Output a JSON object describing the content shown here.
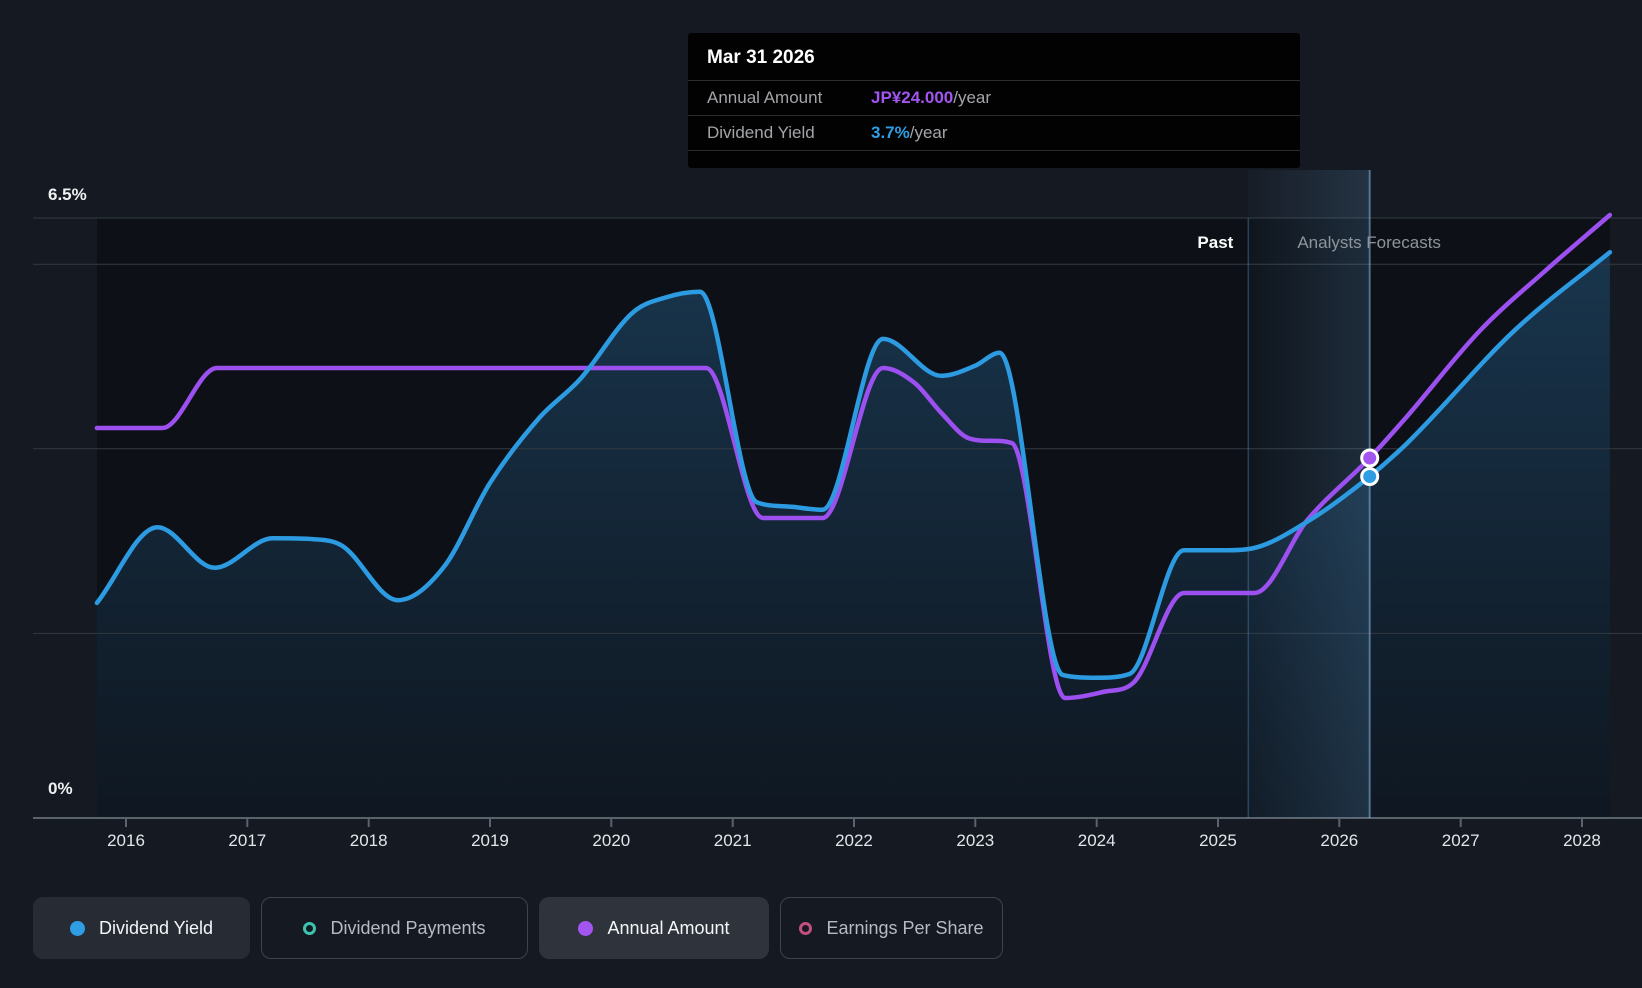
{
  "tooltip": {
    "date": "Mar 31 2026",
    "rows": [
      {
        "label": "Annual Amount",
        "value": "JP¥24.000",
        "suffix": "/year",
        "color": "#a355f2"
      },
      {
        "label": "Dividend Yield",
        "value": "3.7%",
        "suffix": "/year",
        "color": "#2f9ee8"
      }
    ]
  },
  "axis": {
    "y_top_label": "6.5%",
    "y_bottom_label": "0%"
  },
  "annotations": {
    "past": "Past",
    "forecast": "Analysts Forecasts"
  },
  "legend": {
    "items": [
      {
        "label": "Dividend Yield",
        "marker": "filled",
        "color": "#2f9de4",
        "active": true
      },
      {
        "label": "Dividend Payments",
        "marker": "ring",
        "color": "#3ec3b0",
        "active": false
      },
      {
        "label": "Annual Amount",
        "marker": "filled",
        "color": "#a355f2",
        "active": true
      },
      {
        "label": "Earnings Per Share",
        "marker": "ring",
        "color": "#c14f82",
        "active": false
      }
    ]
  },
  "chart_data": {
    "type": "line",
    "title": "Dividend yield history and analysts forecasts",
    "x_axis": {
      "ticks": [
        2016,
        2017,
        2018,
        2019,
        2020,
        2021,
        2022,
        2023,
        2024,
        2025,
        2026,
        2027,
        2028
      ],
      "range": [
        2015.76,
        2028.23
      ]
    },
    "y_axis": {
      "label": "Dividend Yield",
      "unit": "%",
      "range": [
        0,
        6.5
      ],
      "top_tick": 6.5,
      "bottom_tick": 0,
      "gridlines_pct": [
        6.5,
        6,
        4,
        2,
        0
      ]
    },
    "forecast_divider_x": 2025.25,
    "hover_x": 2026.25,
    "grid": true,
    "series": [
      {
        "name": "Dividend Yield",
        "unit": "%",
        "color": "#2d9be2",
        "style": "area-line",
        "points": [
          [
            2015.76,
            2.33
          ],
          [
            2016.26,
            3.15
          ],
          [
            2016.73,
            2.71
          ],
          [
            2017.21,
            3.03
          ],
          [
            2017.55,
            3.02
          ],
          [
            2017.78,
            2.95
          ],
          [
            2018.24,
            2.36
          ],
          [
            2018.62,
            2.72
          ],
          [
            2019.0,
            3.63
          ],
          [
            2019.41,
            4.34
          ],
          [
            2019.74,
            4.75
          ],
          [
            2020.18,
            5.48
          ],
          [
            2020.45,
            5.64
          ],
          [
            2020.73,
            5.7
          ],
          [
            2021.2,
            3.42
          ],
          [
            2021.5,
            3.37
          ],
          [
            2021.74,
            3.34
          ],
          [
            2022.24,
            5.19
          ],
          [
            2022.72,
            4.79
          ],
          [
            2023.0,
            4.9
          ],
          [
            2023.2,
            5.04
          ],
          [
            2023.72,
            1.55
          ],
          [
            2024.0,
            1.52
          ],
          [
            2024.27,
            1.56
          ],
          [
            2024.72,
            2.9
          ],
          [
            2025.05,
            2.9
          ],
          [
            2025.28,
            2.92
          ],
          [
            2025.76,
            3.23
          ],
          [
            2026.25,
            3.7
          ],
          [
            2026.55,
            4.05
          ],
          [
            2027.45,
            5.29
          ],
          [
            2028.23,
            6.13
          ]
        ]
      },
      {
        "name": "Annual Amount",
        "unit": "JP¥/year",
        "color": "#9d50f0",
        "style": "line",
        "points": [
          [
            2015.76,
            26
          ],
          [
            2016.3,
            26
          ],
          [
            2016.75,
            30
          ],
          [
            2017.5,
            30
          ],
          [
            2018.5,
            30
          ],
          [
            2019.5,
            30
          ],
          [
            2020.3,
            30
          ],
          [
            2020.78,
            30
          ],
          [
            2021.25,
            20
          ],
          [
            2021.74,
            20
          ],
          [
            2022.24,
            30
          ],
          [
            2022.5,
            29
          ],
          [
            2022.72,
            27
          ],
          [
            2022.95,
            25.3
          ],
          [
            2023.3,
            25
          ],
          [
            2023.74,
            8
          ],
          [
            2024.05,
            8.4
          ],
          [
            2024.3,
            9
          ],
          [
            2024.72,
            15
          ],
          [
            2025.05,
            15
          ],
          [
            2025.3,
            15
          ],
          [
            2025.74,
            19.9
          ],
          [
            2026.25,
            24
          ],
          [
            2026.55,
            26.7
          ],
          [
            2027.16,
            32.5
          ],
          [
            2027.7,
            36.5
          ],
          [
            2028.23,
            40.2
          ]
        ]
      }
    ],
    "markers": [
      {
        "series": "Annual Amount",
        "x": 2026.25,
        "y": 24,
        "label": "JP¥24.000/year",
        "color": "#a355f2"
      },
      {
        "series": "Dividend Yield",
        "x": 2026.25,
        "y": 3.7,
        "label": "3.7%/year",
        "color": "#2f9de4"
      }
    ]
  }
}
